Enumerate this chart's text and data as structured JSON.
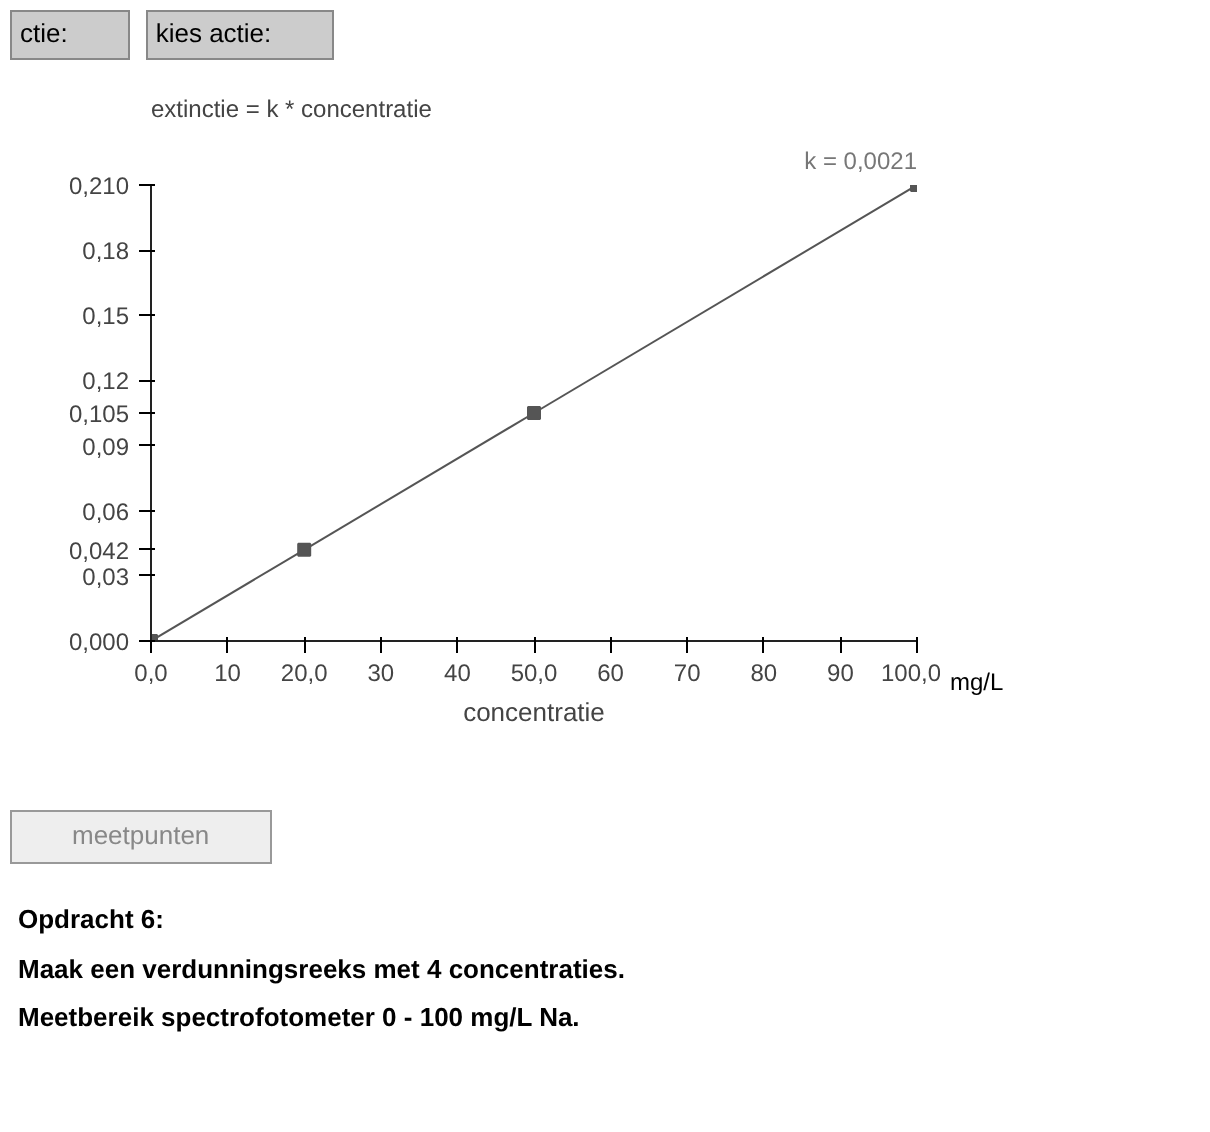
{
  "chart_data": {
    "type": "line",
    "title": "extinctie = k * concentratie",
    "xlabel": "concentratie",
    "x": [
      0,
      20,
      50,
      100
    ],
    "series": [
      {
        "color": "#555555",
        "values": [
          0,
          0.042,
          0.105,
          0.21
        ]
      }
    ],
    "marker": "square",
    "line_style": "solid",
    "grid": false,
    "xlim": [
      0,
      100
    ],
    "ylim": [
      0,
      0.21
    ],
    "xticks": [
      {
        "value": 0,
        "label": "0,0"
      },
      10,
      {
        "value": 20,
        "label": "20,0"
      },
      30,
      40,
      {
        "value": 50,
        "label": "50,0"
      },
      60,
      70,
      80,
      90,
      {
        "value": 100,
        "label": "100,0"
      }
    ],
    "yticks": [
      {
        "value": 0,
        "label": "0,000"
      },
      {
        "value": 0.03,
        "label": "0,03"
      },
      {
        "value": 0.042,
        "label": "0,042"
      },
      {
        "value": 0.06,
        "label": "0,06"
      },
      {
        "value": 0.09,
        "label": "0,09"
      },
      {
        "value": 0.105,
        "label": "0,105"
      },
      {
        "value": 0.12,
        "label": "0,12"
      },
      {
        "value": 0.15,
        "label": "0,15"
      },
      {
        "value": 0.18,
        "label": "0,18"
      },
      {
        "value": 0.21,
        "label": "0,210"
      }
    ],
    "annotations": [
      "k = 0,0021",
      "mg/L",
      "ctie:",
      "kies actie:",
      "meetpunten",
      "Opdracht 6:",
      "Maak een verdunningsreeks met 4 concentraties.",
      "Meetbereik spectrofotometer 0 - 100 mg/L Na."
    ]
  }
}
